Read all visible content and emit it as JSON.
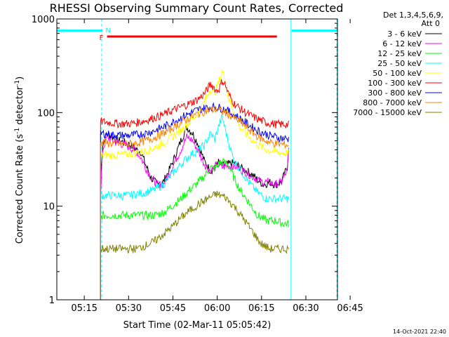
{
  "chart_data": {
    "type": "line",
    "title": "RHESSI Observing Summary Count Rates, Corrected",
    "xlabel": "Start Time (02-Mar-11 05:05:42)",
    "ylabel_main": "Corrected Count Rate (s",
    "ylabel_sup1": "-1",
    "ylabel_mid": " detector",
    "ylabel_sup2": "-1",
    "ylabel_end": ")",
    "yscale": "log",
    "ylim": [
      1,
      1000
    ],
    "xlim_minutes": [
      0,
      95
    ],
    "x_ticks": [
      {
        "label": "05:15",
        "minutes": 9.3
      },
      {
        "label": "05:30",
        "minutes": 24.3
      },
      {
        "label": "05:45",
        "minutes": 39.3
      },
      {
        "label": "06:00",
        "minutes": 54.3
      },
      {
        "label": "06:15",
        "minutes": 69.3
      },
      {
        "label": "06:30",
        "minutes": 84.3
      },
      {
        "label": "06:45",
        "minutes": 99.3
      }
    ],
    "y_ticks": [
      {
        "label": "1",
        "value": 1
      },
      {
        "label": "10",
        "value": 10
      },
      {
        "label": "100",
        "value": 100
      },
      {
        "label": "1000",
        "value": 1000
      }
    ],
    "legend_header": [
      "Det 1,3,4,5,6,9,",
      "Att 0"
    ],
    "grid": false,
    "legend_position": "right",
    "series": [
      {
        "name": "3 - 6 keV",
        "color": "#000000",
        "x": [
          14.8,
          15.5,
          17,
          19,
          21,
          23,
          25,
          27,
          28.5,
          30,
          32,
          34,
          36,
          38,
          40,
          42,
          44,
          46,
          48,
          50,
          52,
          53.5,
          54.5,
          56,
          58,
          60,
          62,
          64,
          66,
          68,
          70,
          72,
          74,
          76,
          78,
          78.5
        ],
        "y": [
          20,
          45,
          60,
          55,
          50,
          48,
          45,
          40,
          38,
          28,
          20,
          17,
          18,
          24,
          34,
          50,
          70,
          60,
          45,
          30,
          24,
          26,
          30,
          27,
          28,
          29,
          26,
          24,
          22,
          19,
          17,
          18,
          17,
          18,
          26,
          45
        ]
      },
      {
        "name": "6 - 12 keV",
        "color": "#ff00ff",
        "x": [
          14.8,
          15.5,
          17,
          19,
          21,
          23,
          25,
          27,
          28.5,
          30,
          32,
          34,
          36,
          38,
          40,
          42,
          44,
          46,
          48,
          50,
          52,
          53.5,
          54.5,
          56,
          58,
          60,
          62,
          64,
          66,
          68,
          70,
          72,
          74,
          76,
          78,
          78.5
        ],
        "y": [
          12,
          40,
          55,
          50,
          47,
          45,
          42,
          38,
          33,
          26,
          20,
          17,
          17,
          22,
          30,
          40,
          55,
          50,
          38,
          28,
          24,
          26,
          28,
          26,
          27,
          27,
          25,
          23,
          21,
          19,
          18,
          18,
          17,
          18,
          24,
          40
        ]
      },
      {
        "name": "12 - 25 keV",
        "color": "#00ff00",
        "x": [
          14.8,
          15.5,
          18,
          21,
          24,
          27,
          30,
          33,
          36,
          39,
          42,
          45,
          48,
          50,
          52,
          53.5,
          55,
          56,
          58,
          60,
          62,
          65,
          68,
          71,
          74,
          77,
          78.5
        ],
        "y": [
          7.5,
          8,
          8,
          8,
          8,
          8,
          8,
          8,
          8.5,
          10,
          12,
          15,
          18,
          21,
          26,
          25,
          28,
          30,
          28,
          20,
          15,
          11,
          8,
          7,
          7,
          6.5,
          6.5
        ]
      },
      {
        "name": "25 - 50 keV",
        "color": "#00ffff",
        "x": [
          14.8,
          15.5,
          18,
          21,
          24,
          27,
          30,
          33,
          36,
          39,
          42,
          45,
          48,
          50,
          52,
          53.5,
          55,
          56,
          58,
          60,
          62,
          65,
          68,
          71,
          74,
          77,
          78.5
        ],
        "y": [
          13,
          13,
          13,
          13,
          13,
          13.5,
          14,
          15,
          17,
          22,
          28,
          35,
          40,
          45,
          60,
          52,
          75,
          90,
          50,
          30,
          25,
          18,
          14,
          12,
          12,
          12,
          12
        ]
      },
      {
        "name": "50 - 100 keV",
        "color": "#ffff00",
        "x": [
          14.8,
          15.5,
          18,
          21,
          24,
          27,
          30,
          33,
          36,
          39,
          42,
          45,
          48,
          50,
          52,
          53,
          54,
          55,
          56,
          57,
          58,
          60,
          62,
          65,
          68,
          71,
          74,
          77,
          78.5
        ],
        "y": [
          35,
          35,
          35,
          35,
          36,
          37,
          39,
          42,
          47,
          55,
          65,
          80,
          100,
          130,
          180,
          160,
          180,
          220,
          280,
          220,
          150,
          100,
          70,
          55,
          45,
          40,
          38,
          37,
          37
        ]
      },
      {
        "name": "100 - 300 keV",
        "color": "#ff0000",
        "x": [
          14.8,
          15.5,
          18,
          21,
          24,
          27,
          30,
          33,
          36,
          39,
          42,
          45,
          48,
          50,
          52,
          53,
          54,
          55,
          56,
          57,
          58,
          60,
          62,
          65,
          68,
          71,
          74,
          77,
          78.5
        ],
        "y": [
          80,
          80,
          78,
          76,
          76,
          78,
          82,
          88,
          95,
          105,
          115,
          125,
          140,
          160,
          200,
          190,
          170,
          180,
          220,
          200,
          160,
          125,
          110,
          95,
          85,
          78,
          75,
          75,
          74
        ]
      },
      {
        "name": "300 - 800 keV",
        "color": "#0000ff",
        "x": [
          14.8,
          15.5,
          18,
          21,
          24,
          27,
          30,
          33,
          36,
          39,
          42,
          45,
          48,
          51,
          54,
          57,
          60,
          63,
          66,
          69,
          72,
          75,
          78.5
        ],
        "y": [
          60,
          60,
          58,
          57,
          57,
          58,
          60,
          64,
          70,
          78,
          88,
          98,
          108,
          113,
          115,
          108,
          95,
          82,
          70,
          62,
          57,
          54,
          52
        ]
      },
      {
        "name": "800 - 7000 keV",
        "color": "#ff8000",
        "x": [
          14.8,
          15.5,
          18,
          21,
          24,
          27,
          30,
          33,
          36,
          39,
          42,
          45,
          48,
          51,
          54,
          57,
          60,
          63,
          66,
          69,
          72,
          75,
          78.5
        ],
        "y": [
          48,
          48,
          47,
          46,
          46,
          47,
          50,
          54,
          60,
          68,
          78,
          88,
          98,
          105,
          108,
          100,
          88,
          75,
          62,
          53,
          48,
          46,
          45
        ]
      },
      {
        "name": "7000 - 15000 keV",
        "color": "#808000",
        "x": [
          14.8,
          15.5,
          18,
          21,
          24,
          27,
          30,
          33,
          36,
          39,
          42,
          45,
          48,
          51,
          54,
          57,
          60,
          63,
          66,
          69,
          72,
          75,
          78.5
        ],
        "y": [
          3.5,
          3.5,
          3.5,
          3.5,
          3.5,
          3.5,
          3.8,
          4.2,
          5,
          6,
          7.5,
          9,
          10.5,
          12,
          13.5,
          12.5,
          10,
          7.5,
          5.5,
          4,
          3.5,
          3.5,
          3.5
        ]
      }
    ],
    "markers": [
      {
        "name": "F",
        "color": "#ff0000",
        "x_start": 17,
        "x_end": 74.5,
        "level": 650
      },
      {
        "name": "N",
        "color": "#00ffff",
        "segments": [
          [
            0,
            15.5
          ],
          [
            79.5,
            95
          ]
        ],
        "level": 750
      }
    ],
    "vertical_lines": [
      {
        "color": "#00ffff",
        "style": "dashed",
        "x": 15.2
      },
      {
        "color": "#00ffff",
        "style": "solid",
        "x": 79.3
      },
      {
        "color": "#00ffff",
        "style": "dashed",
        "x": 94.8
      }
    ]
  },
  "timestamp": "14-Oct-2021 22:40"
}
